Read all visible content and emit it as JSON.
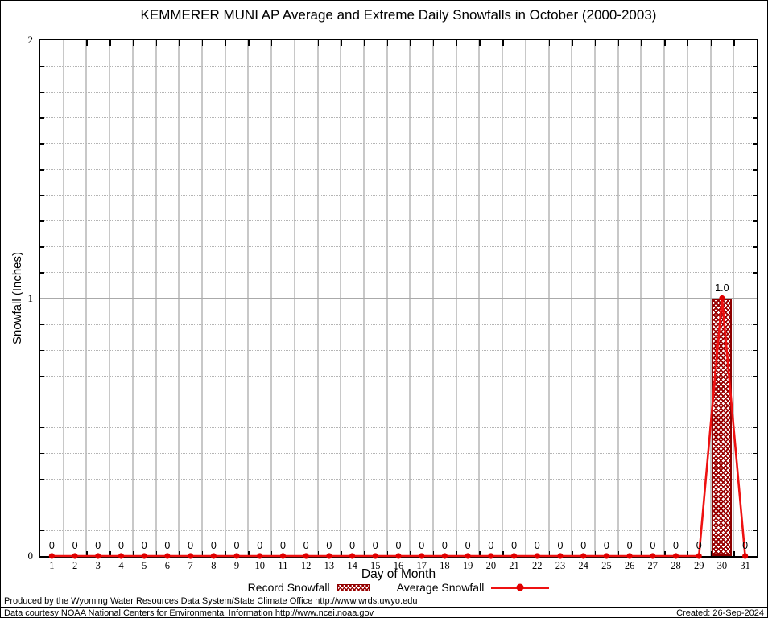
{
  "title": "KEMMERER MUNI AP Average and Extreme Daily Snowfalls in October (2000-2003)",
  "chart_data": {
    "type": "bar",
    "title": "KEMMERER MUNI AP Average and Extreme Daily Snowfalls in October (2000-2003)",
    "xlabel": "Day of Month",
    "ylabel": "Snowfall (Inches)",
    "categories": [
      1,
      2,
      3,
      4,
      5,
      6,
      7,
      8,
      9,
      10,
      11,
      12,
      13,
      14,
      15,
      16,
      17,
      18,
      19,
      20,
      21,
      22,
      23,
      24,
      25,
      26,
      27,
      28,
      29,
      30,
      31
    ],
    "series": [
      {
        "name": "Record Snowfall",
        "type": "bar",
        "values": [
          0,
          0,
          0,
          0,
          0,
          0,
          0,
          0,
          0,
          0,
          0,
          0,
          0,
          0,
          0,
          0,
          0,
          0,
          0,
          0,
          0,
          0,
          0,
          0,
          0,
          0,
          0,
          0,
          0,
          1.0,
          0
        ]
      },
      {
        "name": "Average Snowfall",
        "type": "line",
        "values": [
          0,
          0,
          0,
          0,
          0,
          0,
          0,
          0,
          0,
          0,
          0,
          0,
          0,
          0,
          0,
          0,
          0,
          0,
          0,
          0,
          0,
          0,
          0,
          0,
          0,
          0,
          0,
          0,
          0,
          1.0,
          0
        ]
      }
    ],
    "point_labels": [
      "0",
      "0",
      "0",
      "0",
      "0",
      "0",
      "0",
      "0",
      "0",
      "0",
      "0",
      "0",
      "0",
      "0",
      "0",
      "0",
      "0",
      "0",
      "0",
      "0",
      "0",
      "0",
      "0",
      "0",
      "0",
      "0",
      "0",
      "0",
      "0",
      "1.0",
      "0"
    ],
    "ylim": [
      0,
      2
    ],
    "ytick_values": [
      0,
      1,
      2
    ],
    "ytick_labels": [
      "0",
      "1",
      "2"
    ],
    "y_minor_step": 0.1,
    "grid": {
      "vertical": "solid between days",
      "horizontal_minor": "dotted each 0.1",
      "horizontal_major": "solid at 1"
    },
    "legend_position": "bottom center"
  },
  "legend": {
    "record_label": "Record Snowfall",
    "average_label": "Average Snowfall"
  },
  "colors": {
    "bar_fill": "#990000",
    "bar_border": "#8e0000",
    "line": "#ee1111",
    "marker": "#e00000",
    "grid_vertical": "#c8c8c8",
    "grid_horizontal": "#b4b4b4",
    "axis": "#000000"
  },
  "footer": {
    "line1": "Produced by the Wyoming Water Resources Data System/State Climate Office http://www.wrds.uwyo.edu",
    "line2": "Data courtesy NOAA National Centers for Environmental Information http://www.ncei.noaa.gov",
    "created": "Created: 26-Sep-2024"
  }
}
